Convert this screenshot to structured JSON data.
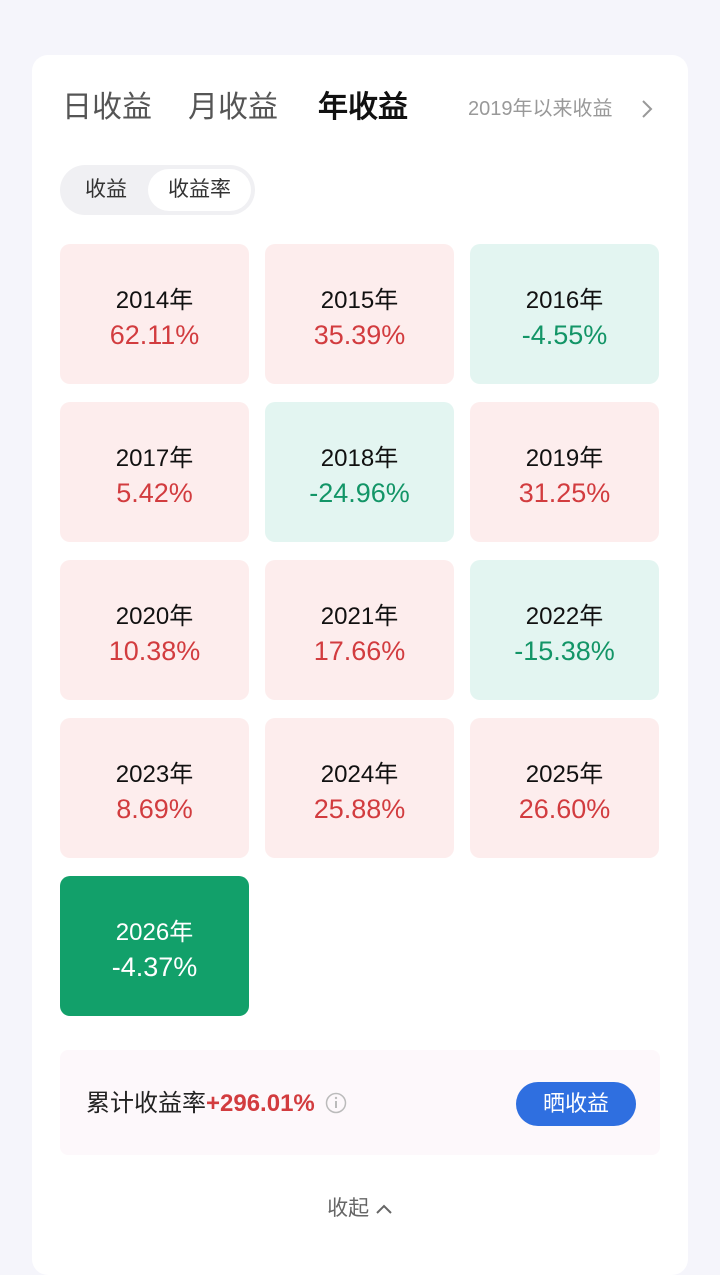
{
  "tabs": {
    "items": [
      "日收益",
      "月收益",
      "年收益"
    ],
    "active": 2
  },
  "since_link": "2019年以来收益",
  "toggle": {
    "items": [
      "收益",
      "收益率"
    ],
    "active": 1
  },
  "tiles": {
    "selected": 12,
    "items": [
      {
        "year": "2014年",
        "value": "62.11%"
      },
      {
        "year": "2015年",
        "value": "35.39%"
      },
      {
        "year": "2016年",
        "value": "-4.55%"
      },
      {
        "year": "2017年",
        "value": "5.42%"
      },
      {
        "year": "2018年",
        "value": "-24.96%"
      },
      {
        "year": "2019年",
        "value": "31.25%"
      },
      {
        "year": "2020年",
        "value": "10.38%"
      },
      {
        "year": "2021年",
        "value": "17.66%"
      },
      {
        "year": "2022年",
        "value": "-15.38%"
      },
      {
        "year": "2023年",
        "value": "8.69%"
      },
      {
        "year": "2024年",
        "value": "25.88%"
      },
      {
        "year": "2025年",
        "value": "26.60%"
      },
      {
        "year": "2026年",
        "value": "-4.37%"
      }
    ]
  },
  "summary": {
    "label": "累计收益率",
    "value": "+296.01%",
    "button": "晒收益"
  },
  "collapse": "收起"
}
